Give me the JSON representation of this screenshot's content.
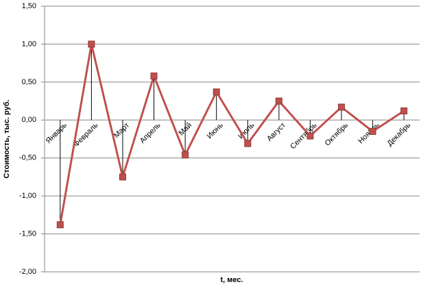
{
  "chart_data": {
    "type": "line",
    "x_label": "t, мес.",
    "y_label": "Стоимость, тыс. руб.",
    "categories": [
      "Январь",
      "Февраль",
      "Март",
      "Апрель",
      "Май",
      "Июнь",
      "Июль",
      "Август",
      "Сентябрь",
      "Октябрь",
      "Ноябрь",
      "Декабрь"
    ],
    "series": [
      {
        "name": "Стоимость",
        "color": "#c0504d",
        "marker_color": "#8c3836",
        "values": [
          -1.38,
          1.0,
          -0.75,
          0.58,
          -0.46,
          0.37,
          -0.31,
          0.25,
          -0.21,
          0.17,
          -0.15,
          0.12
        ]
      }
    ],
    "ylim": [
      -2,
      1.5
    ],
    "yticks": [
      {
        "value": -2,
        "label": "-2,00"
      },
      {
        "value": -1.5,
        "label": "-1,50"
      },
      {
        "value": -1,
        "label": "-1,00"
      },
      {
        "value": -0.5,
        "label": "-0,50"
      },
      {
        "value": 0,
        "label": "0,00"
      },
      {
        "value": 0.5,
        "label": "0,50"
      },
      {
        "value": 1,
        "label": "1,00"
      },
      {
        "value": 1.5,
        "label": "1,50"
      }
    ],
    "grid": true,
    "drop_lines": true
  }
}
